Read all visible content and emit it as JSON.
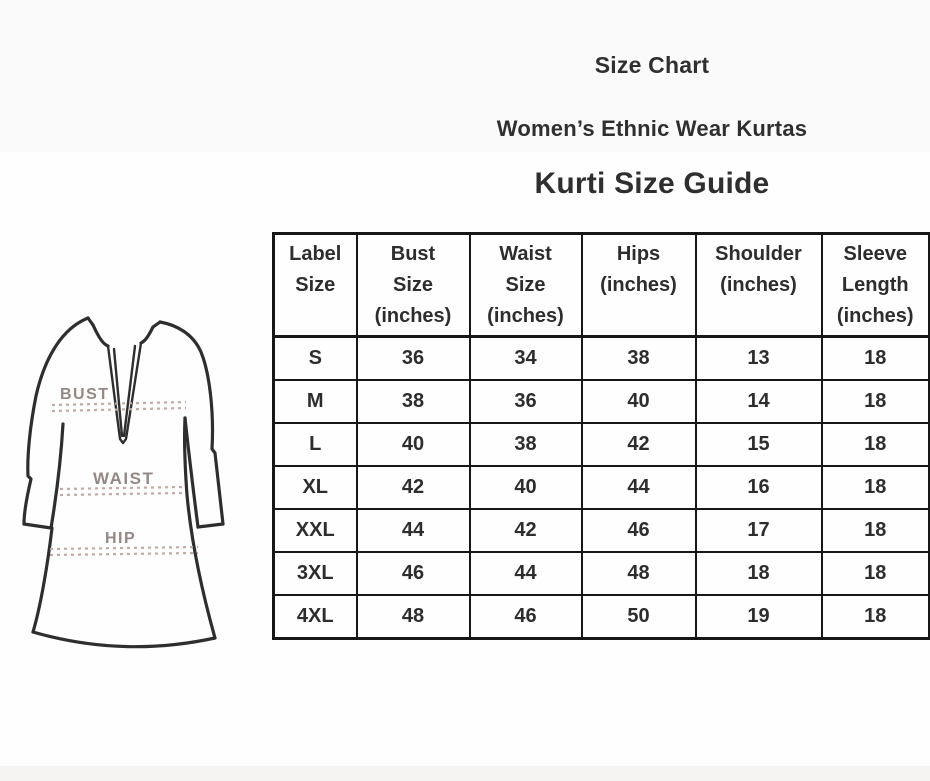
{
  "page": {
    "title_line1": "Size Chart",
    "title_line2": "Women’s Ethnic Wear Kurtas",
    "title_line3": "Kurti Size Guide"
  },
  "diagram": {
    "type": "kurti-measurement-sketch",
    "labels": {
      "bust": "BUST",
      "waist": "WAIST",
      "hip": "HIP"
    },
    "outline_color": "#2e2e2e",
    "label_color": "#948884",
    "dash_color": "#c2a9a3"
  },
  "table": {
    "headers": [
      "Label\nSize",
      "Bust\nSize\n(inches)",
      "Waist\nSize\n(inches)",
      "Hips\n(inches)",
      "Shoulder\n(inches)",
      "Sleeve\nLength\n(inches)"
    ],
    "rows": [
      [
        "S",
        "36",
        "34",
        "38",
        "13",
        "18"
      ],
      [
        "M",
        "38",
        "36",
        "40",
        "14",
        "18"
      ],
      [
        "L",
        "40",
        "38",
        "42",
        "15",
        "18"
      ],
      [
        "XL",
        "42",
        "40",
        "44",
        "16",
        "18"
      ],
      [
        "XXL",
        "44",
        "42",
        "46",
        "17",
        "18"
      ],
      [
        "3XL",
        "46",
        "44",
        "48",
        "18",
        "18"
      ],
      [
        "4XL",
        "48",
        "46",
        "50",
        "19",
        "18"
      ]
    ],
    "border_color": "#171717",
    "text_color": "#2d2d2d"
  },
  "chart_data": {
    "type": "table",
    "title": "Kurti Size Guide",
    "subtitle": "Women’s Ethnic Wear Kurtas",
    "columns": [
      "Label Size",
      "Bust Size (inches)",
      "Waist Size (inches)",
      "Hips (inches)",
      "Shoulder (inches)",
      "Sleeve Length (inches)"
    ],
    "rows": [
      [
        "S",
        36,
        34,
        38,
        13,
        18
      ],
      [
        "M",
        38,
        36,
        40,
        14,
        18
      ],
      [
        "L",
        40,
        38,
        42,
        15,
        18
      ],
      [
        "XL",
        42,
        40,
        44,
        16,
        18
      ],
      [
        "XXL",
        44,
        42,
        46,
        17,
        18
      ],
      [
        "3XL",
        46,
        44,
        48,
        18,
        18
      ],
      [
        "4XL",
        48,
        46,
        50,
        19,
        18
      ]
    ]
  }
}
